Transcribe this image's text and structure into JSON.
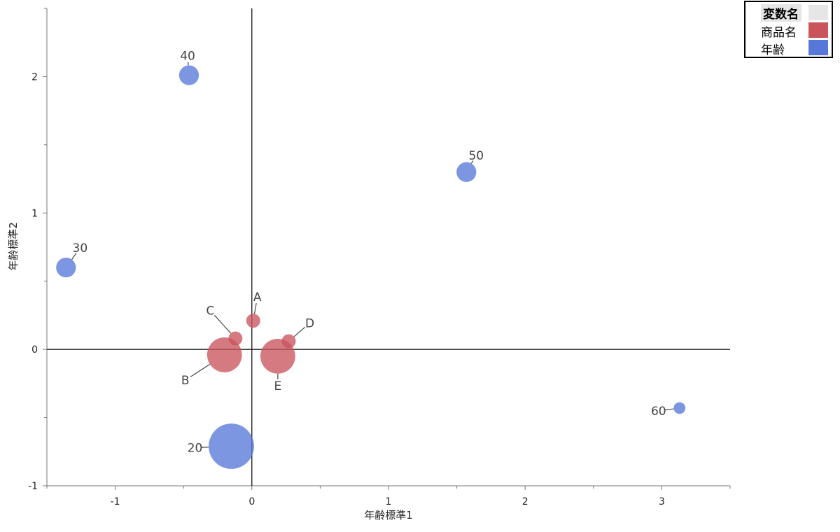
{
  "chart_data": {
    "type": "scatter",
    "xlabel": "年齢標準1",
    "ylabel": "年齢標準2",
    "xlim": [
      -1.5,
      3.5
    ],
    "ylim": [
      -1.0,
      2.5
    ],
    "x_ticks": [
      -1,
      0,
      1,
      2,
      3
    ],
    "y_ticks": [
      -1,
      0,
      1,
      2
    ],
    "reference_lines": {
      "x": 0,
      "y": 0
    },
    "legend": {
      "title": "変数名",
      "position": "top-right",
      "entries": [
        {
          "name": "商品名",
          "color": "#c9545c"
        },
        {
          "name": "年齢",
          "color": "#5778d9"
        }
      ]
    },
    "series": [
      {
        "name": "商品名",
        "color": "#c9545c",
        "points": [
          {
            "label": "A",
            "x": 0.01,
            "y": 0.21,
            "size": 1.0
          },
          {
            "label": "B",
            "x": -0.2,
            "y": -0.04,
            "size": 6.2
          },
          {
            "label": "C",
            "x": -0.12,
            "y": 0.08,
            "size": 1.0
          },
          {
            "label": "D",
            "x": 0.27,
            "y": 0.06,
            "size": 1.0
          },
          {
            "label": "E",
            "x": 0.19,
            "y": -0.05,
            "size": 6.2
          }
        ]
      },
      {
        "name": "年齢",
        "color": "#5778d9",
        "points": [
          {
            "label": "20",
            "x": -0.15,
            "y": -0.71,
            "size": 10.5
          },
          {
            "label": "30",
            "x": -1.36,
            "y": 0.6,
            "size": 2.0
          },
          {
            "label": "40",
            "x": -0.46,
            "y": 2.01,
            "size": 2.0
          },
          {
            "label": "50",
            "x": 1.57,
            "y": 1.3,
            "size": 2.0
          },
          {
            "label": "60",
            "x": 3.13,
            "y": -0.43,
            "size": 0.7
          }
        ]
      }
    ]
  }
}
